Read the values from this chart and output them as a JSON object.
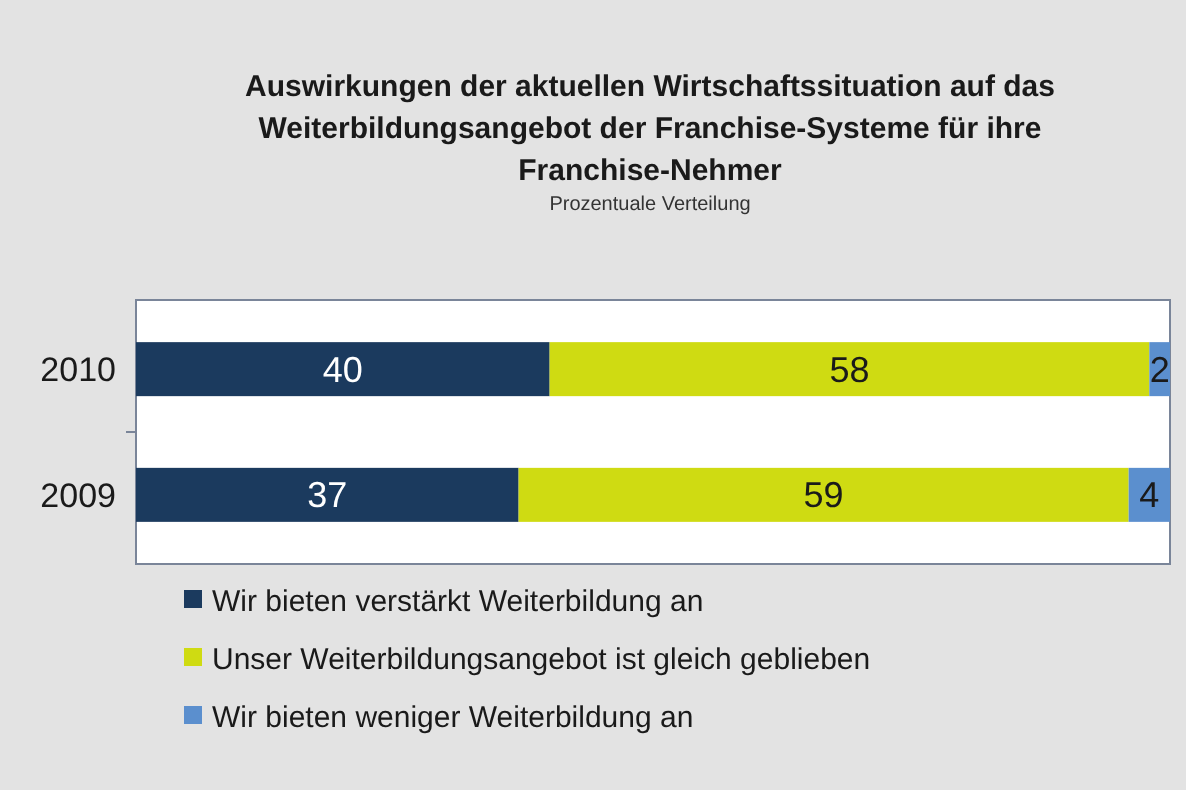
{
  "chart_data": {
    "type": "bar",
    "orientation": "horizontal",
    "stacked": true,
    "data_labels": true,
    "title": "Auswirkungen der aktuellen Wirtschaftssituation auf das Weiterbildungsangebot der Franchise-Systeme für ihre Franchise-Nehmer",
    "subtitle": "Prozentuale Verteilung",
    "categories": [
      "2010",
      "2009"
    ],
    "series": [
      {
        "name": "Wir bieten verstärkt Weiterbildung an",
        "color": "#1b3a5e",
        "values": [
          40,
          37
        ]
      },
      {
        "name": "Unser Weiterbildungsangebot ist gleich geblieben",
        "color": "#cfdb12",
        "values": [
          58,
          59
        ]
      },
      {
        "name": "Wir bieten weniger Weiterbildung an",
        "color": "#5b8fce",
        "values": [
          2,
          4
        ]
      }
    ],
    "legend": "bottom"
  }
}
